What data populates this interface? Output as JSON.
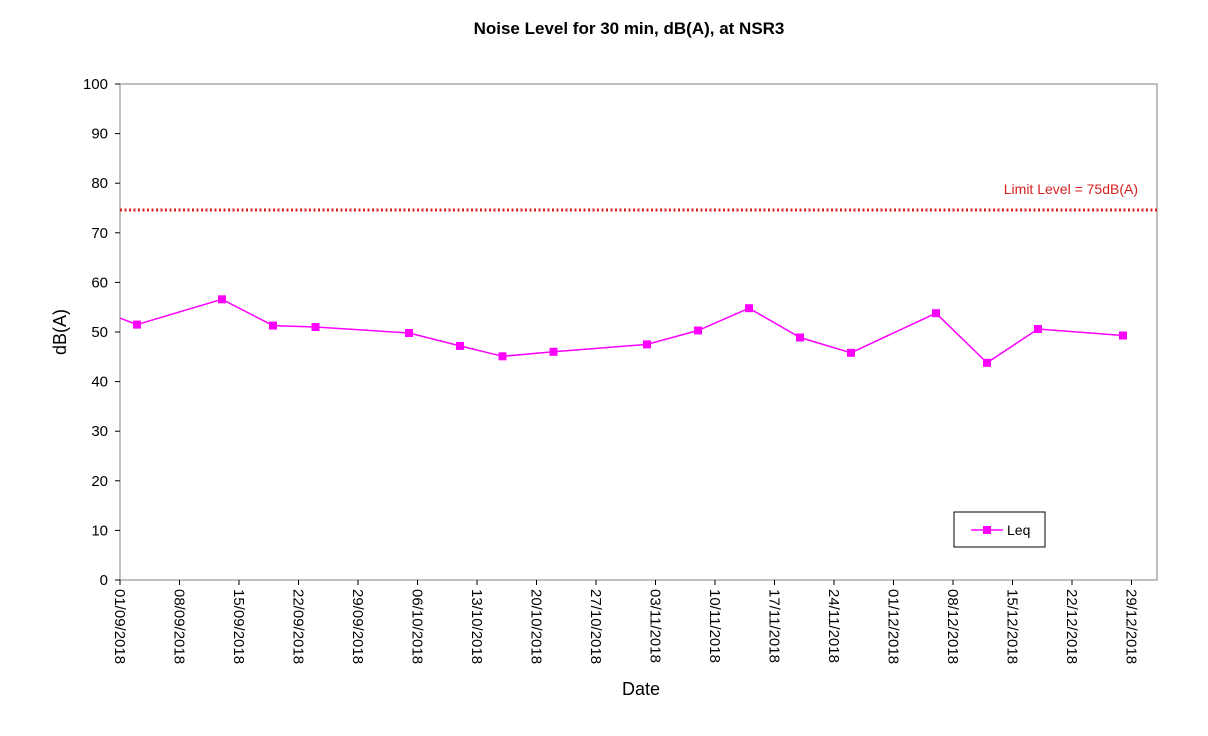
{
  "chart_data": {
    "type": "line",
    "title": "Noise Level for 30 min, dB(A), at NSR3",
    "xlabel": "Date",
    "ylabel": "dB(A)",
    "ylim": [
      0,
      100
    ],
    "y_ticks": [
      0,
      10,
      20,
      30,
      40,
      50,
      60,
      70,
      80,
      90,
      100
    ],
    "x_range": [
      "2018-09-01",
      "2019-01-01"
    ],
    "x_ticks": [
      "01/09/2018",
      "08/09/2018",
      "15/09/2018",
      "22/09/2018",
      "29/09/2018",
      "06/10/2018",
      "13/10/2018",
      "20/10/2018",
      "27/10/2018",
      "03/11/2018",
      "10/11/2018",
      "17/11/2018",
      "24/11/2018",
      "01/12/2018",
      "08/12/2018",
      "15/12/2018",
      "22/12/2018",
      "29/12/2018"
    ],
    "grid": false,
    "legend_position": "bottom-right",
    "series": [
      {
        "name": "Leq",
        "color": "#ff00ff",
        "marker": "square",
        "x": [
          "2018-09-03",
          "2018-09-13",
          "2018-09-19",
          "2018-09-24",
          "2018-10-05",
          "2018-10-11",
          "2018-10-16",
          "2018-10-22",
          "2018-11-02",
          "2018-11-08",
          "2018-11-14",
          "2018-11-20",
          "2018-11-26",
          "2018-12-06",
          "2018-12-12",
          "2018-12-18",
          "2018-12-28"
        ],
        "values": [
          51.5,
          56.6,
          51.3,
          51.0,
          49.8,
          47.2,
          45.1,
          46.0,
          47.5,
          50.3,
          54.8,
          48.9,
          45.8,
          53.8,
          43.8,
          50.6,
          49.3
        ],
        "line_start_value": 52.8
      }
    ],
    "limit_line": {
      "label": "Limit Level = 75dB(A)",
      "value": 74.6,
      "color": "#e02020",
      "style": "dotted"
    }
  }
}
